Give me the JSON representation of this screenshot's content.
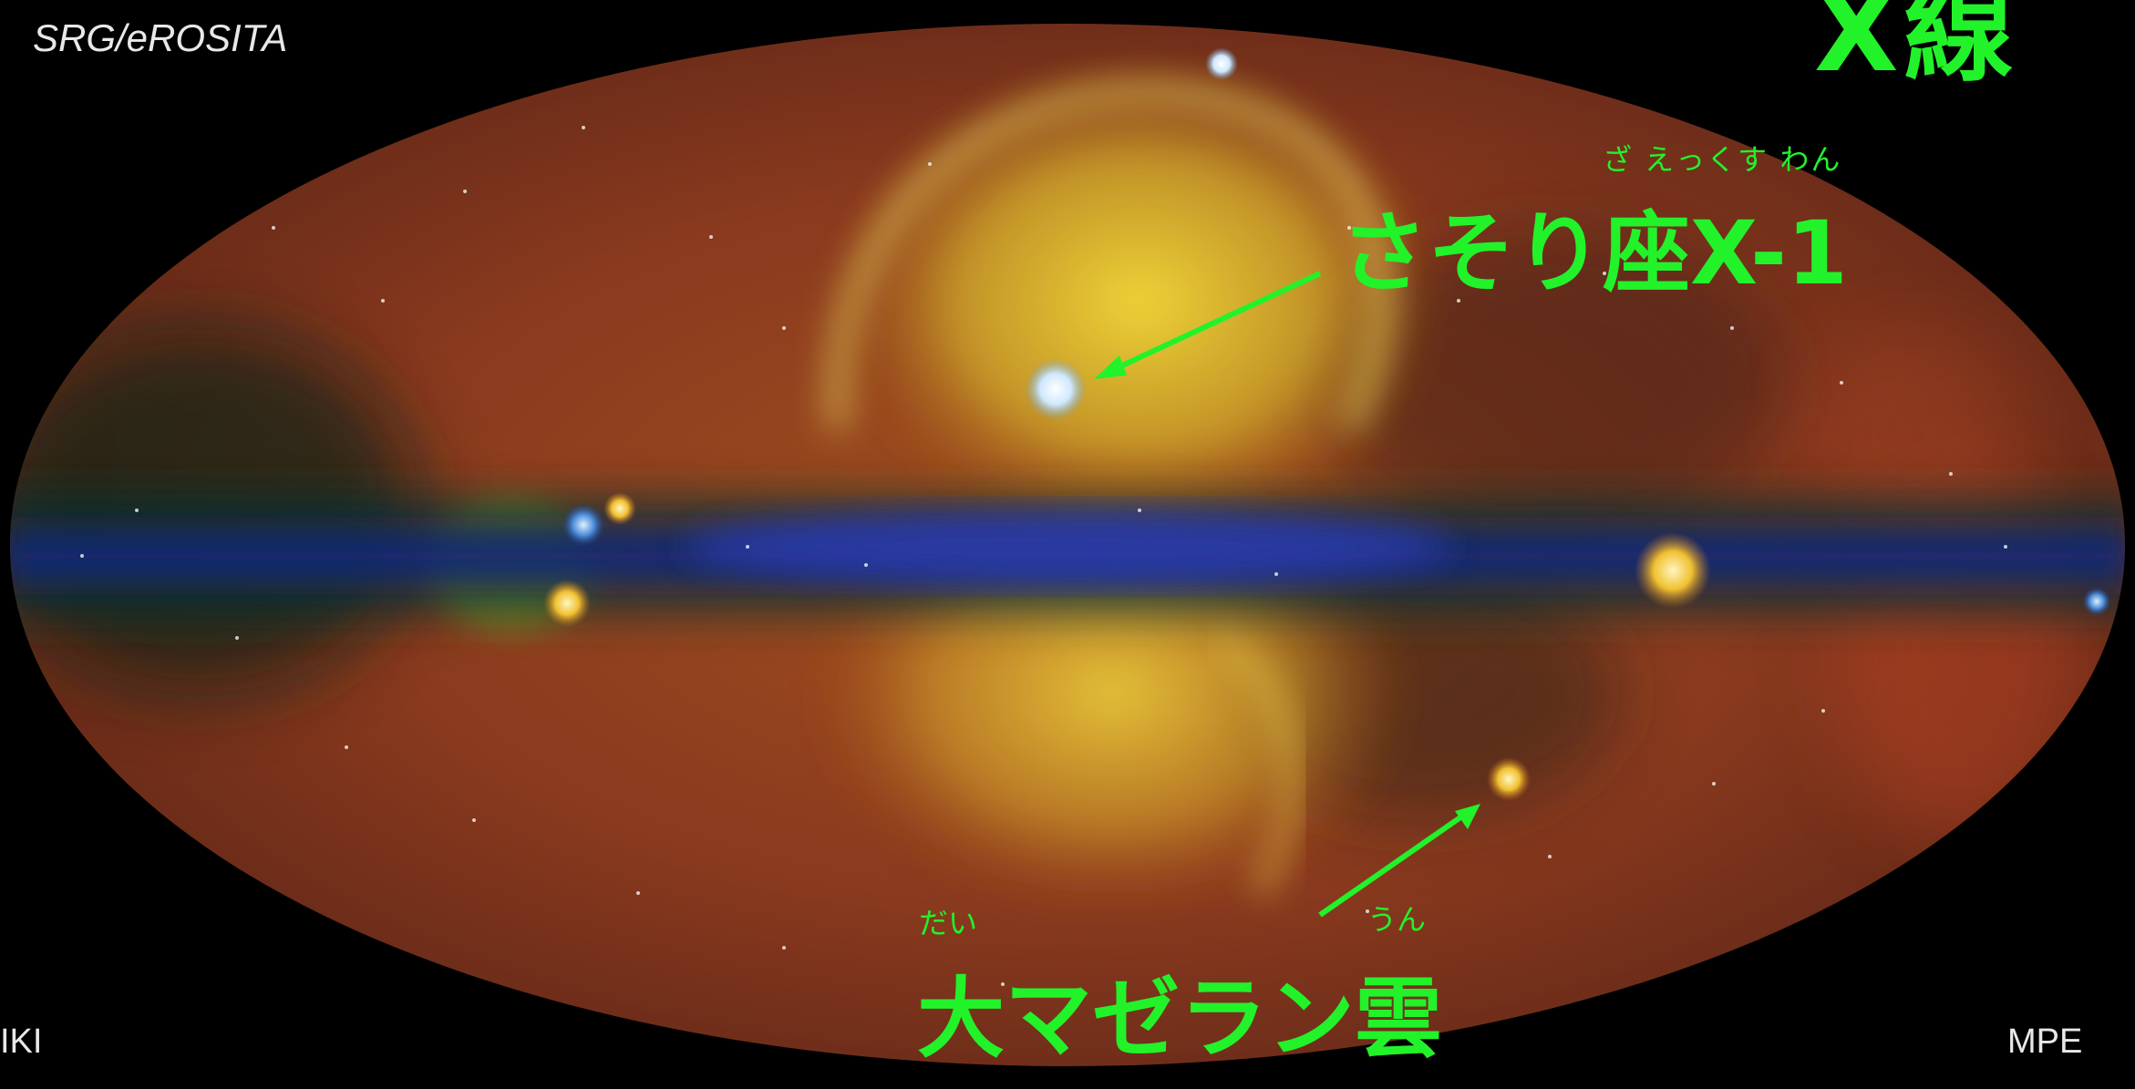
{
  "image": {
    "subject": "eROSITA all-sky X-ray map",
    "colors": {
      "background": "#000000",
      "label_green": "#22f22a",
      "credit_text": "#e8e8e8",
      "sky_red_brown": "#8a3a1e",
      "bubble_yellow": "#e8d23a",
      "plane_blue": "#1a2a8a"
    }
  },
  "credits": {
    "top_left": "SRG/eROSITA",
    "bottom_left": "IKI",
    "bottom_right": "MPE"
  },
  "title": {
    "partial_text": "X線"
  },
  "annotations": {
    "sco_x1": {
      "ruby": "ざ えっくす わん",
      "label": "さそり座X-1"
    },
    "lmc": {
      "ruby_left": "だい",
      "ruby_right": "うん",
      "label": "大マゼラン雲"
    }
  }
}
